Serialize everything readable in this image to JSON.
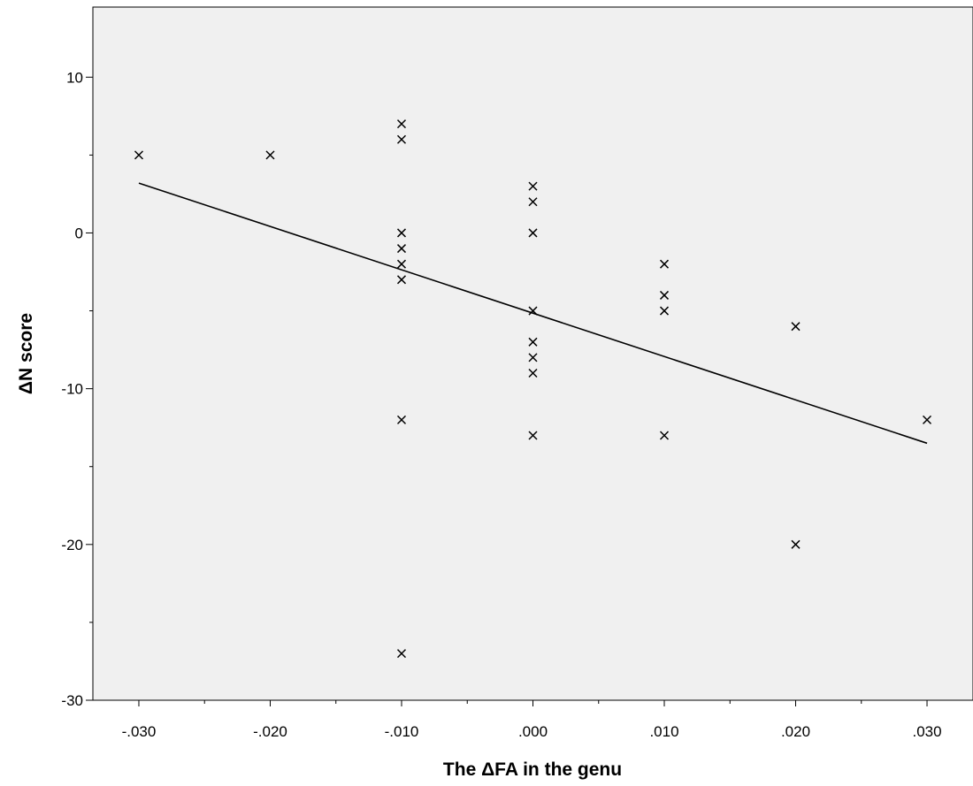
{
  "chart_data": {
    "type": "scatter",
    "title": "",
    "xlabel": "The ΔFA in the genu",
    "ylabel": "ΔN score",
    "xlim": [
      -0.0335,
      0.0335
    ],
    "ylim": [
      -30,
      14.5
    ],
    "x_ticks": [
      -0.03,
      -0.02,
      -0.01,
      0.0,
      0.01,
      0.02,
      0.03
    ],
    "x_tick_labels": [
      "-.030",
      "-.020",
      "-.010",
      ".000",
      ".010",
      ".020",
      ".030"
    ],
    "x_minor_ticks": [
      -0.025,
      -0.015,
      -0.005,
      0.005,
      0.015,
      0.025
    ],
    "y_ticks": [
      10,
      0,
      -10,
      -20,
      -30
    ],
    "y_tick_labels": [
      "10",
      "0",
      "-10",
      "-20",
      "-30"
    ],
    "y_minor_ticks": [
      5,
      -5,
      -15,
      -25
    ],
    "grid": false,
    "background": "#f0f0f0",
    "marker": "x",
    "series": [
      {
        "points": [
          [
            -0.03,
            5
          ],
          [
            -0.02,
            5
          ],
          [
            -0.01,
            7
          ],
          [
            -0.01,
            6
          ],
          [
            -0.01,
            0
          ],
          [
            -0.01,
            -1
          ],
          [
            -0.01,
            -2
          ],
          [
            -0.01,
            -3
          ],
          [
            -0.01,
            -12
          ],
          [
            -0.01,
            -27
          ],
          [
            0.0,
            3
          ],
          [
            0.0,
            2
          ],
          [
            0.0,
            0
          ],
          [
            0.0,
            -5
          ],
          [
            0.0,
            -7
          ],
          [
            0.0,
            -8
          ],
          [
            0.0,
            -9
          ],
          [
            0.0,
            -13
          ],
          [
            0.01,
            -2
          ],
          [
            0.01,
            -4
          ],
          [
            0.01,
            -5
          ],
          [
            0.01,
            -13
          ],
          [
            0.02,
            -6
          ],
          [
            0.02,
            -20
          ],
          [
            0.03,
            -12
          ]
        ]
      }
    ],
    "fit_line": {
      "x": [
        -0.03,
        0.03
      ],
      "y": [
        3.2,
        -13.5
      ]
    }
  }
}
